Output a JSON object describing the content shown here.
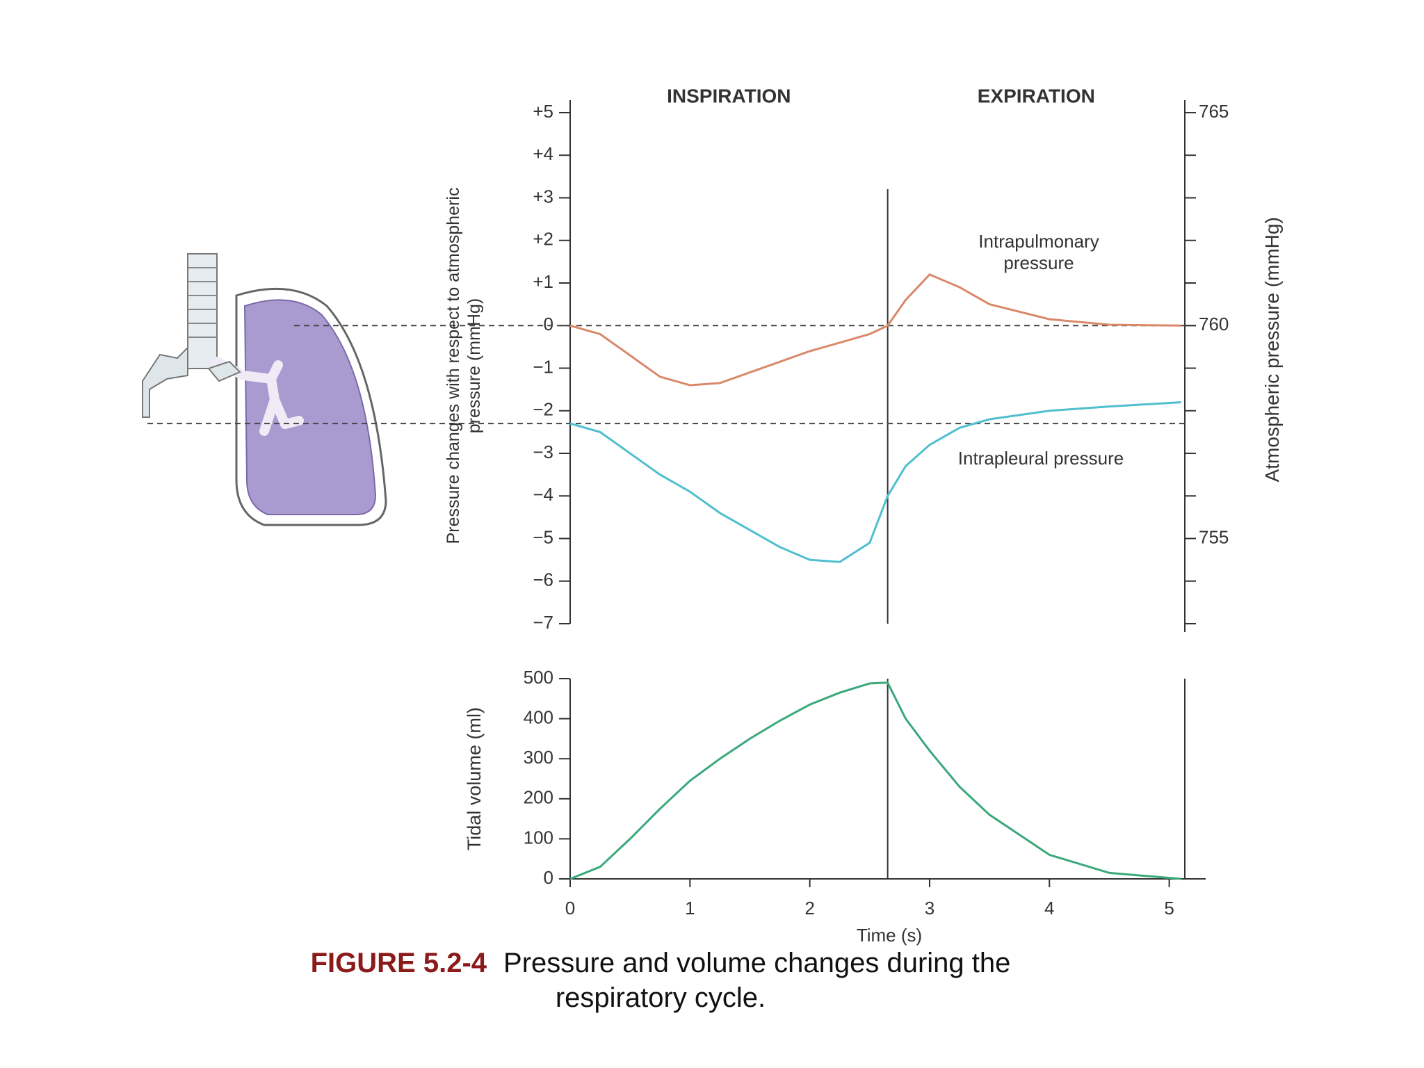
{
  "chart_data": [
    {
      "type": "line",
      "phases": [
        "INSPIRATION",
        "EXPIRATION"
      ],
      "boundary": 2.65,
      "x": [
        0,
        0.25,
        0.5,
        0.75,
        1,
        1.25,
        1.5,
        1.75,
        2,
        2.25,
        2.5,
        2.65,
        2.8,
        3,
        3.25,
        3.5,
        4,
        4.5,
        5.1
      ],
      "series": [
        {
          "name": "Intrapulmonary pressure",
          "color": "#d9896a",
          "values": [
            0,
            -0.2,
            -0.7,
            -1.2,
            -1.4,
            -1.35,
            -1.1,
            -0.85,
            -0.6,
            -0.4,
            -0.2,
            0,
            0.6,
            1.2,
            0.9,
            0.5,
            0.15,
            0.02,
            0
          ]
        },
        {
          "name": "Intrapleural pressure",
          "color": "#4fbfcf",
          "values": [
            -2.3,
            -2.5,
            -3.0,
            -3.5,
            -3.9,
            -4.4,
            -4.8,
            -5.2,
            -5.5,
            -5.55,
            -5.1,
            -4.0,
            -3.3,
            -2.8,
            -2.4,
            -2.2,
            -2.0,
            -1.9,
            -1.8
          ]
        }
      ],
      "xlim": [
        0,
        5.13
      ],
      "ylim": [
        -7,
        5
      ],
      "yticks": [
        {
          "value": 5,
          "label": "+5"
        },
        {
          "value": 4,
          "label": "+4"
        },
        {
          "value": 3,
          "label": "+3"
        },
        {
          "value": 2,
          "label": "+2"
        },
        {
          "value": 1,
          "label": "+1"
        },
        0,
        {
          "value": -1,
          "label": "−1"
        },
        {
          "value": -2,
          "label": "−2"
        },
        {
          "value": -3,
          "label": "−3"
        },
        {
          "value": -4,
          "label": "−4"
        },
        {
          "value": -5,
          "label": "−5"
        },
        {
          "value": -6,
          "label": "−6"
        },
        {
          "value": -7,
          "label": "−7"
        }
      ],
      "ylabel": "Pressure changes with respect to atmospheric pressure (mmHg)",
      "y2lim": [
        753,
        765
      ],
      "y2ticks": [
        765,
        760,
        755
      ],
      "y2label": "Atmospheric pressure (mmHg)"
    },
    {
      "type": "line",
      "boundary": 2.65,
      "x": [
        0,
        0.25,
        0.5,
        0.75,
        1,
        1.25,
        1.5,
        1.75,
        2,
        2.25,
        2.5,
        2.65,
        2.8,
        3,
        3.25,
        3.5,
        4,
        4.5,
        5.1
      ],
      "values": [
        0,
        30,
        100,
        175,
        245,
        300,
        350,
        395,
        435,
        465,
        488,
        490,
        400,
        320,
        230,
        160,
        60,
        15,
        0
      ],
      "color": "#3aa87a",
      "xlim": [
        0,
        5.13
      ],
      "xticks": [
        0,
        1,
        2,
        3,
        4,
        5
      ],
      "xlabel": "Time (s)",
      "ylim": [
        0,
        500
      ],
      "yticks": [
        0,
        100,
        200,
        300,
        400,
        500
      ],
      "ylabel": "Tidal volume (ml)"
    }
  ],
  "caption": {
    "label": "FIGURE 5.2-4",
    "lines": [
      "Pressure and volume changes during the",
      "respiratory cycle."
    ]
  }
}
